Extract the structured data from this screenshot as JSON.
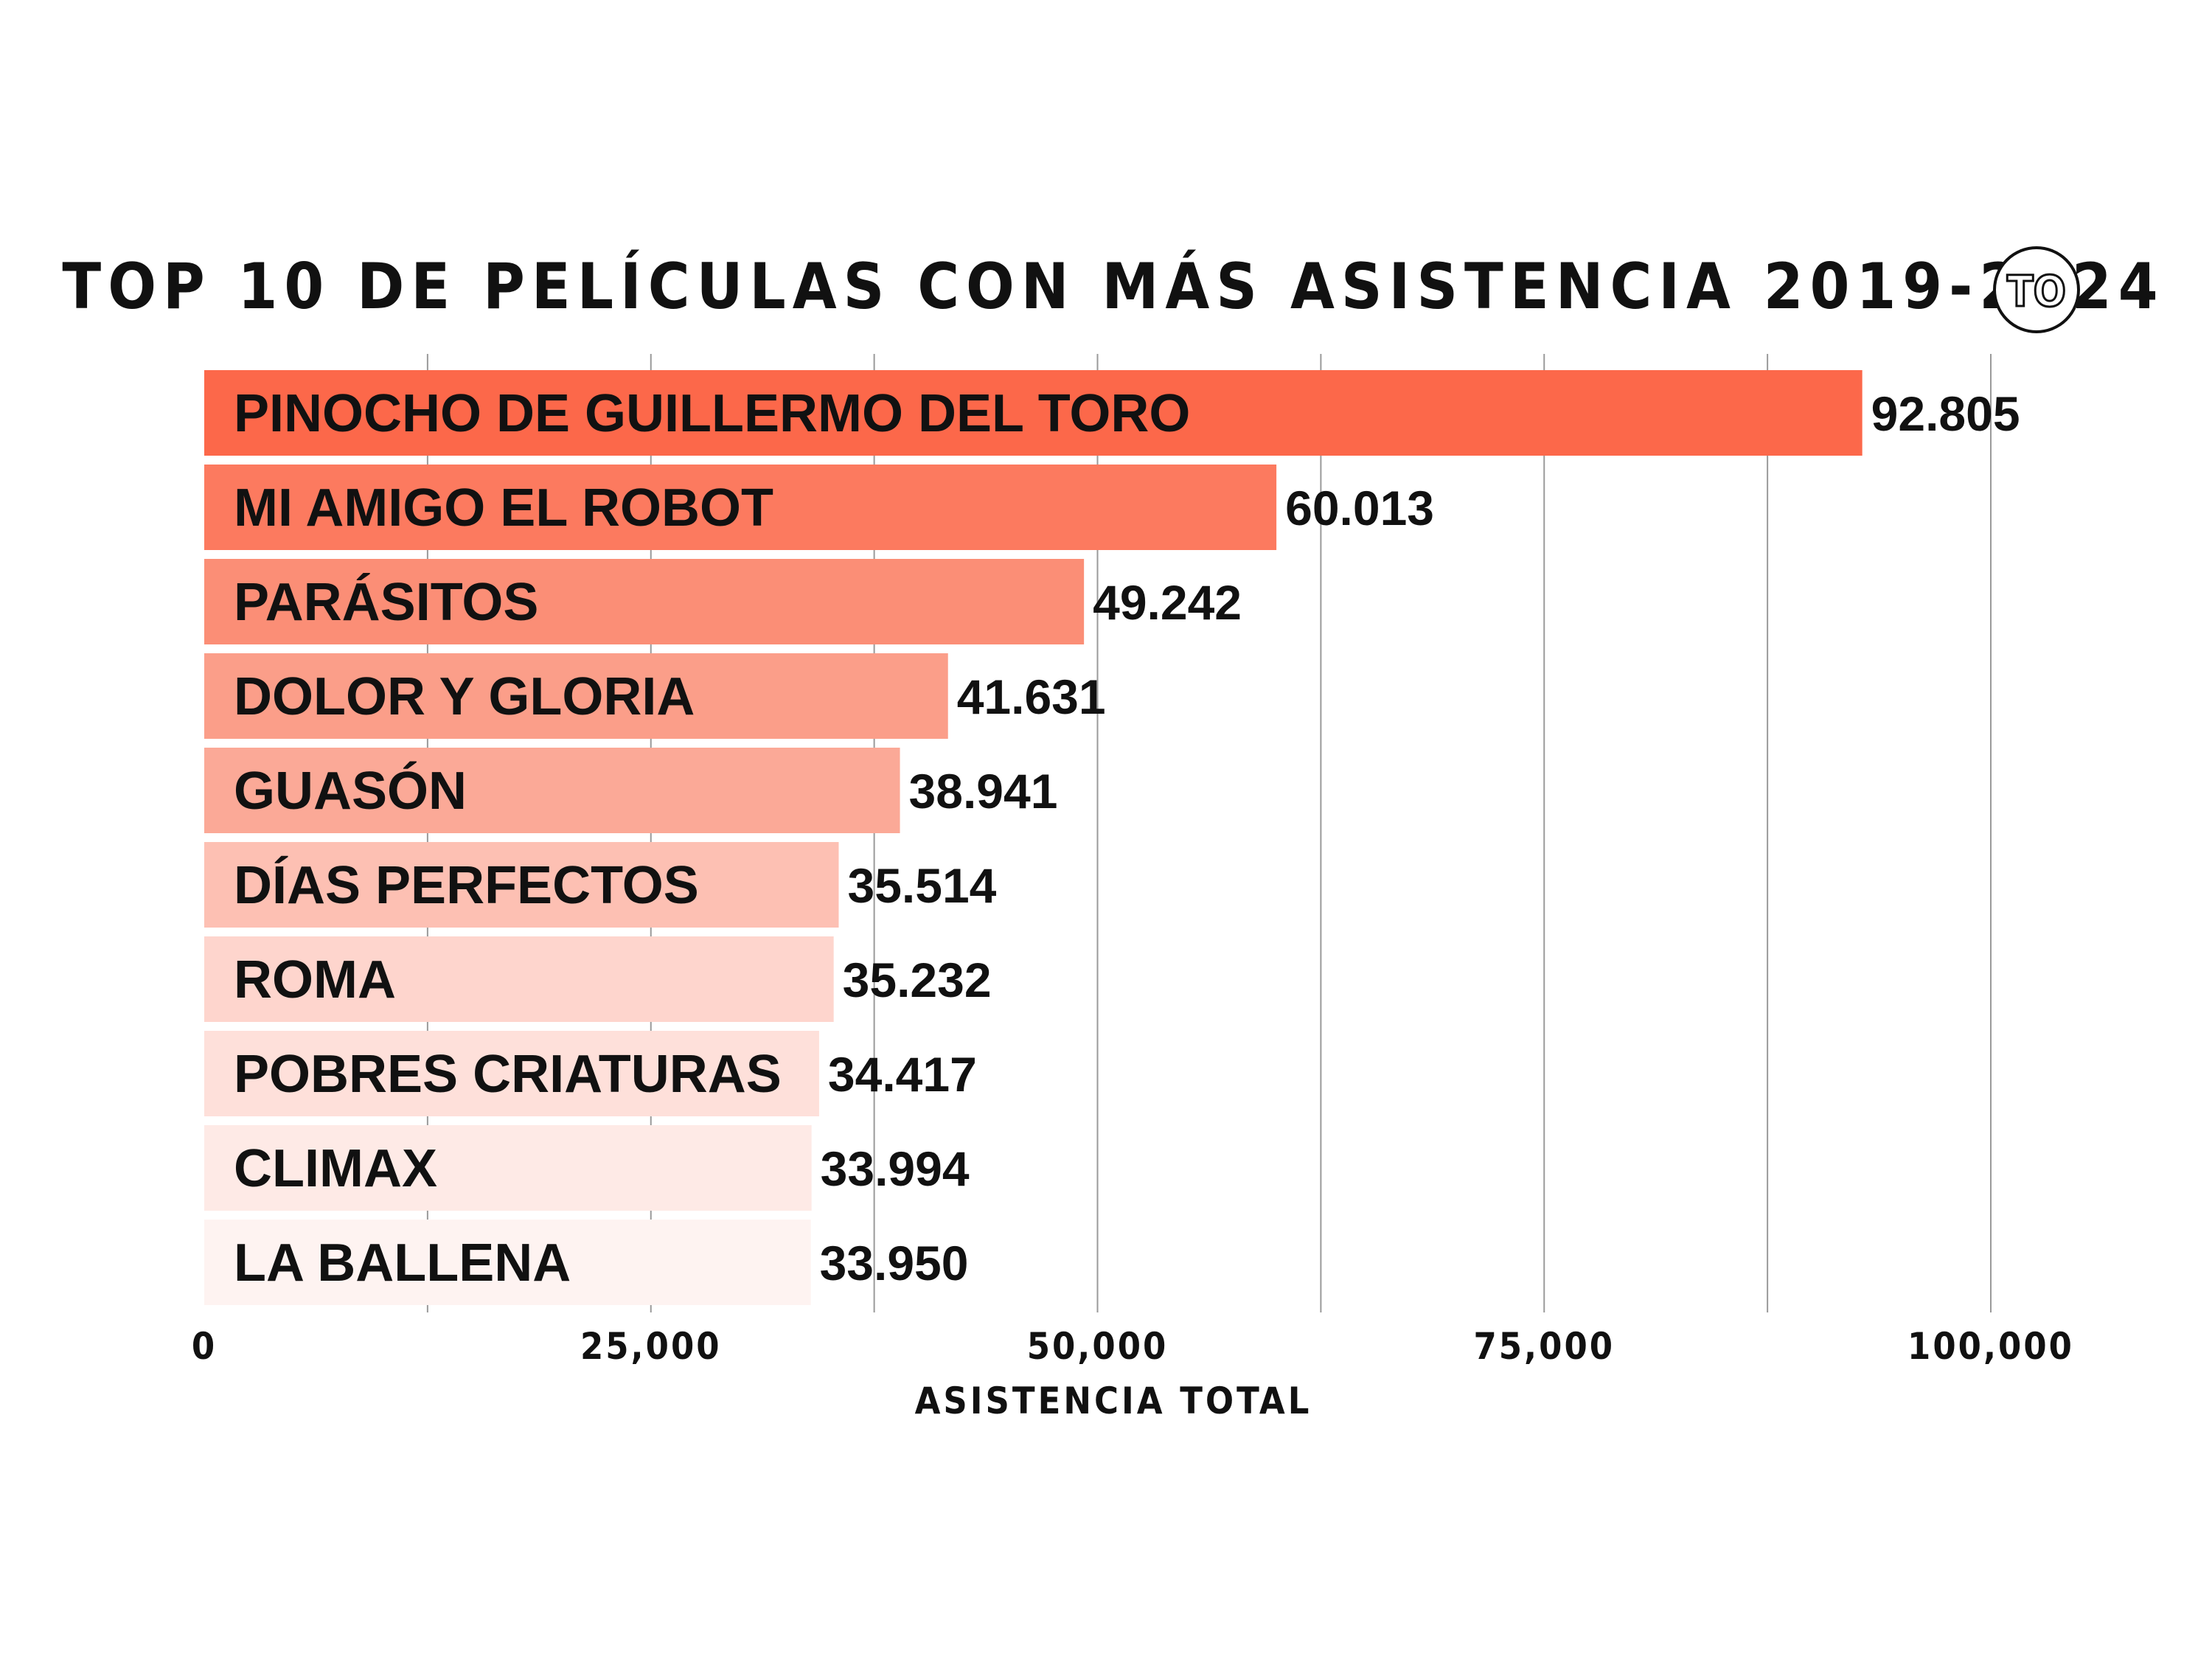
{
  "chart_data": {
    "type": "bar",
    "orientation": "horizontal",
    "title": "TOP 10 DE PELÍCULAS CON MÁS ASISTENCIA 2019-2024",
    "xlabel": "ASISTENCIA TOTAL",
    "ylabel": "",
    "xlim": [
      0,
      100000
    ],
    "x_ticks": [
      0,
      25000,
      50000,
      75000,
      100000
    ],
    "x_tick_labels": [
      "0",
      "25,000",
      "50,000",
      "75,000",
      "100,000"
    ],
    "grid": "vertical",
    "categories": [
      "PINOCHO DE GUILLERMO DEL TORO",
      "MI AMIGO EL ROBOT",
      "PARÁSITOS",
      "DOLOR Y GLORIA",
      "GUASÓN",
      "DÍAS PERFECTOS",
      "ROMA",
      "POBRES CRIATURAS",
      "CLIMAX",
      "LA BALLENA"
    ],
    "values": [
      92805,
      60013,
      49242,
      41631,
      38941,
      35514,
      35232,
      34417,
      33994,
      33950
    ],
    "value_labels": [
      "92.805",
      "60.013",
      "49.242",
      "41.631",
      "38.941",
      "35.514",
      "35.232",
      "34.417",
      "33.994",
      "33.950"
    ],
    "colors": [
      "#fc684a",
      "#fc7a5f",
      "#fb8e76",
      "#fb9e89",
      "#fba997",
      "#fdc0b3",
      "#fed5cd",
      "#fee0da",
      "#feeae6",
      "#fef3f1"
    ]
  },
  "logo": {
    "text": "TO"
  }
}
